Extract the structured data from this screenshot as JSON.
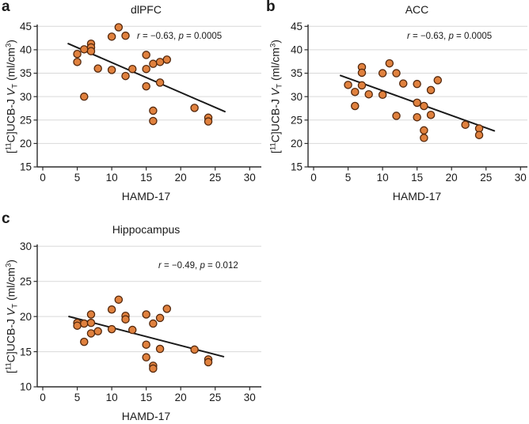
{
  "figure": {
    "colors": {
      "background": "#ffffff",
      "marker_fill": "#E0813E",
      "marker_stroke": "#53280D",
      "trend_line": "#1a1a1a",
      "gridline": "#d9d9d9",
      "axis": "#2b2b2b",
      "text": "#1a1a1a"
    },
    "shared": {
      "ylabel_parts": {
        "open": "[",
        "isotope": "11",
        "tracer": "C]UCB-J ",
        "volume_var": "V",
        "volume_sub": "T",
        "unit_pre": " (ml/cm",
        "unit_sup": "3",
        "unit_close": ")"
      }
    }
  },
  "chart_data": [
    {
      "type": "scatter",
      "panel_label": "a",
      "title": "dlPFC",
      "xlabel": "HAMD-17",
      "ylabel": "[11C]UCB-J VT (ml/cm3)",
      "annotation": {
        "r_var": "r",
        "r_eq": " = −0.63, ",
        "p_var": "p",
        "p_eq": " = 0.0005"
      },
      "xlim": [
        0,
        30
      ],
      "ylim": [
        15,
        45
      ],
      "xticks": [
        0,
        5,
        10,
        15,
        20,
        25,
        30
      ],
      "yticks": [
        15,
        20,
        25,
        30,
        35,
        40,
        45
      ],
      "grid": "horizontal",
      "legend": "none",
      "points": [
        [
          5,
          39.1
        ],
        [
          5,
          37.4
        ],
        [
          6,
          40.1
        ],
        [
          6,
          30.0
        ],
        [
          7,
          41.3
        ],
        [
          7,
          40.5
        ],
        [
          7,
          39.7
        ],
        [
          8,
          36.0
        ],
        [
          10,
          42.8
        ],
        [
          10,
          35.7
        ],
        [
          11,
          44.8
        ],
        [
          12,
          43.0
        ],
        [
          12,
          34.4
        ],
        [
          13,
          35.9
        ],
        [
          15,
          38.9
        ],
        [
          15,
          35.9
        ],
        [
          15,
          32.2
        ],
        [
          16,
          37.0
        ],
        [
          16,
          27.0
        ],
        [
          16,
          24.8
        ],
        [
          17,
          37.4
        ],
        [
          17,
          33.0
        ],
        [
          18,
          37.9
        ],
        [
          22,
          27.6
        ],
        [
          24,
          25.5
        ],
        [
          24,
          24.7
        ]
      ],
      "trend": {
        "x1": 3.7,
        "y1": 41.3,
        "x2": 26.4,
        "y2": 26.8
      }
    },
    {
      "type": "scatter",
      "panel_label": "b",
      "title": "ACC",
      "xlabel": "HAMD-17",
      "ylabel": "[11C]UCB-J VT (ml/cm3)",
      "annotation": {
        "r_var": "r",
        "r_eq": " = −0.63, ",
        "p_var": "p",
        "p_eq": " = 0.0005"
      },
      "xlim": [
        0,
        30
      ],
      "ylim": [
        15,
        45
      ],
      "xticks": [
        0,
        5,
        10,
        15,
        20,
        25,
        30
      ],
      "yticks": [
        15,
        20,
        25,
        30,
        35,
        40,
        45
      ],
      "grid": "horizontal",
      "legend": "none",
      "points": [
        [
          5,
          32.5
        ],
        [
          6,
          31.0
        ],
        [
          6,
          28.0
        ],
        [
          7,
          36.3
        ],
        [
          7,
          35.1
        ],
        [
          7,
          32.4
        ],
        [
          8,
          30.5
        ],
        [
          10,
          35.0
        ],
        [
          10,
          30.4
        ],
        [
          11,
          37.1
        ],
        [
          12,
          35.0
        ],
        [
          12,
          25.9
        ],
        [
          13,
          32.8
        ],
        [
          15,
          32.7
        ],
        [
          15,
          28.7
        ],
        [
          15,
          25.6
        ],
        [
          16,
          28.0
        ],
        [
          16,
          22.8
        ],
        [
          16,
          21.2
        ],
        [
          17,
          31.4
        ],
        [
          17,
          26.1
        ],
        [
          18,
          33.5
        ],
        [
          22,
          24.0
        ],
        [
          24,
          23.2
        ],
        [
          24,
          21.8
        ]
      ],
      "trend": {
        "x1": 3.9,
        "y1": 34.5,
        "x2": 26.2,
        "y2": 22.7
      }
    },
    {
      "type": "scatter",
      "panel_label": "c",
      "title": "Hippocampus",
      "xlabel": "HAMD-17",
      "ylabel": "[11C]UCB-J VT (ml/cm3)",
      "annotation": {
        "r_var": "r",
        "r_eq": " = −0.49, ",
        "p_var": "p",
        "p_eq": " = 0.012"
      },
      "xlim": [
        0,
        30
      ],
      "ylim": [
        10,
        30
      ],
      "xticks": [
        0,
        5,
        10,
        15,
        20,
        25,
        30
      ],
      "yticks": [
        10,
        15,
        20,
        25,
        30
      ],
      "grid": "horizontal",
      "legend": "none",
      "points": [
        [
          5,
          19.1
        ],
        [
          5,
          18.7
        ],
        [
          6,
          19.0
        ],
        [
          6,
          16.4
        ],
        [
          7,
          20.3
        ],
        [
          7,
          19.1
        ],
        [
          7,
          17.6
        ],
        [
          8,
          17.9
        ],
        [
          10,
          21.0
        ],
        [
          10,
          18.2
        ],
        [
          11,
          22.4
        ],
        [
          12,
          20.1
        ],
        [
          12,
          19.6
        ],
        [
          13,
          18.1
        ],
        [
          15,
          20.3
        ],
        [
          15,
          16.0
        ],
        [
          15,
          14.2
        ],
        [
          16,
          19.0
        ],
        [
          16,
          13.0
        ],
        [
          16,
          12.6
        ],
        [
          17,
          19.8
        ],
        [
          17,
          15.4
        ],
        [
          18,
          21.1
        ],
        [
          22,
          15.3
        ],
        [
          24,
          13.9
        ],
        [
          24,
          13.5
        ]
      ],
      "trend": {
        "x1": 3.8,
        "y1": 20.0,
        "x2": 26.2,
        "y2": 14.3
      }
    }
  ]
}
